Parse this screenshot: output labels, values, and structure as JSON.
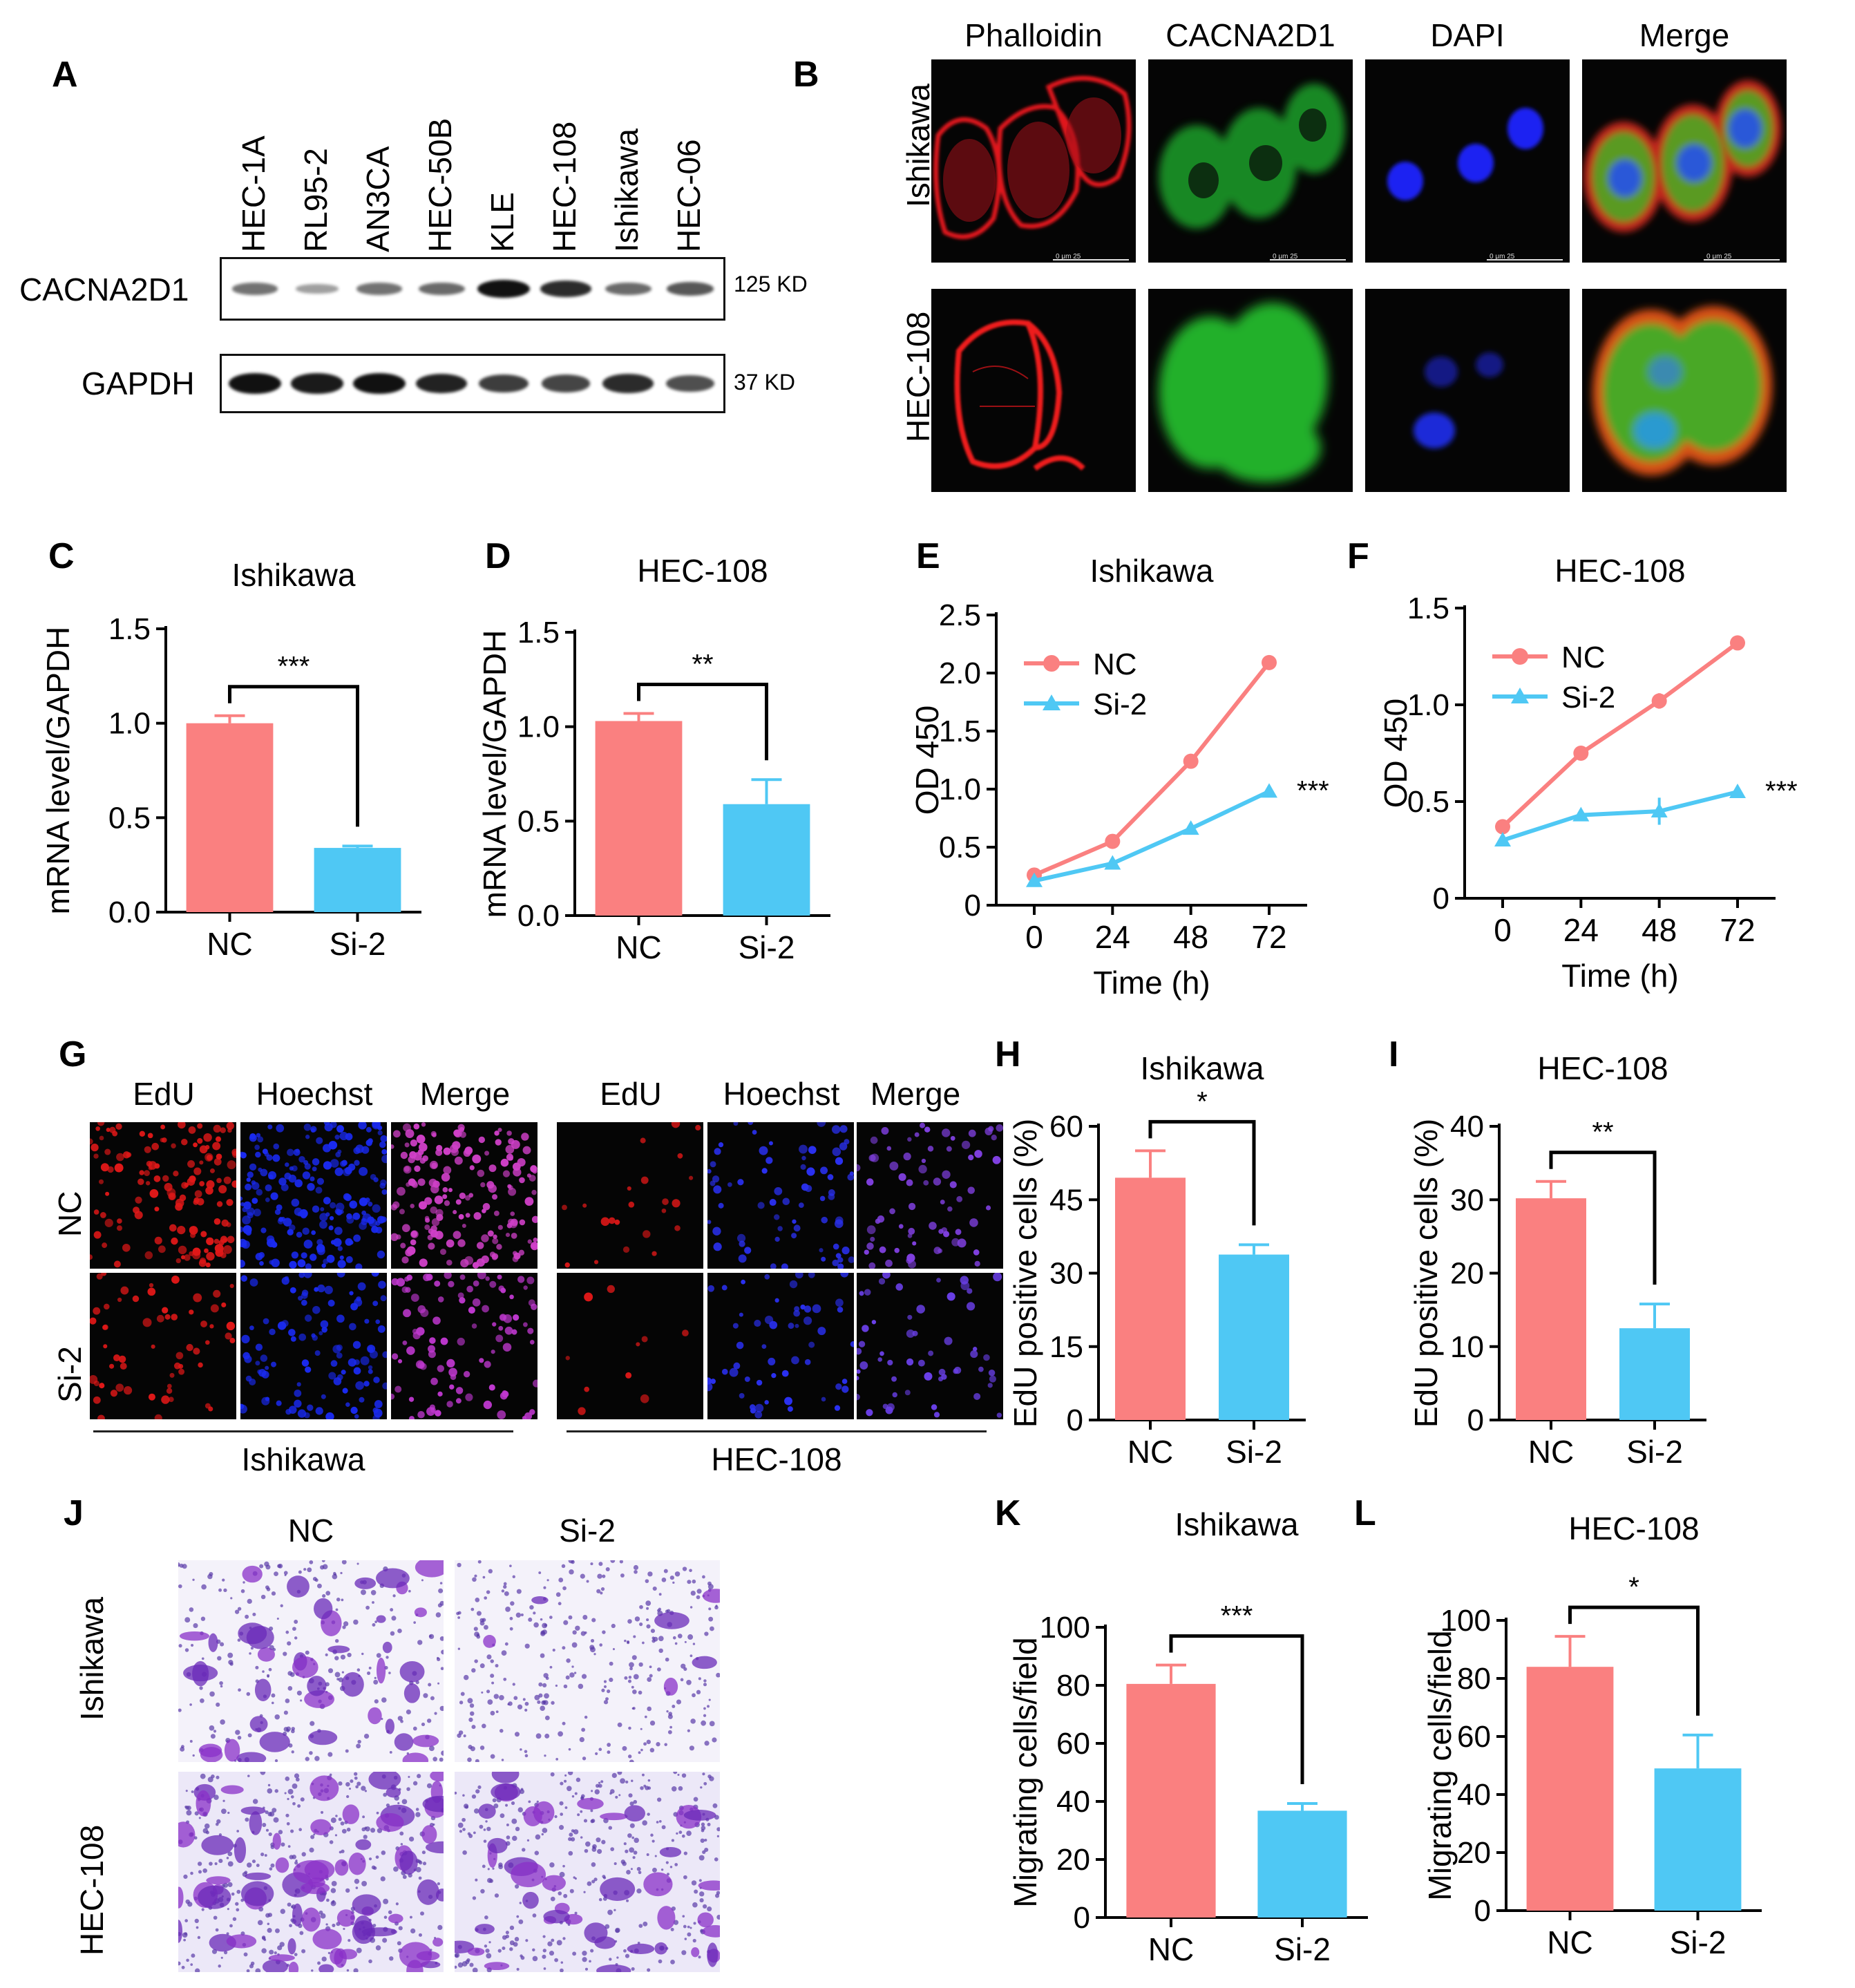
{
  "panels": {
    "A": "A",
    "B": "B",
    "C": "C",
    "D": "D",
    "E": "E",
    "F": "F",
    "G": "G",
    "H": "H",
    "I": "I",
    "J": "J",
    "K": "K",
    "L": "L"
  },
  "western_blot": {
    "lanes": [
      "HEC-1A",
      "RL95-2",
      "AN3CA",
      "HEC-50B",
      "KLE",
      "HEC-108",
      "Ishikawa",
      "HEC-06"
    ],
    "rows": [
      {
        "protein": "CACNA2D1",
        "size": "125 KD",
        "intensity": [
          0.45,
          0.2,
          0.45,
          0.5,
          1.0,
          0.85,
          0.5,
          0.6
        ]
      },
      {
        "protein": "GAPDH",
        "size": "37 KD",
        "intensity": [
          1.0,
          0.95,
          1.0,
          0.9,
          0.75,
          0.7,
          0.85,
          0.65
        ]
      }
    ]
  },
  "if_panel": {
    "columns": [
      "Phalloidin",
      "CACNA2D1",
      "DAPI",
      "Merge"
    ],
    "rows": [
      "Ishikawa",
      "HEC-108"
    ],
    "scale_text": "0   μm   25"
  },
  "edu_panel": {
    "groups": [
      {
        "columns": [
          "EdU",
          "Hoechst",
          "Merge"
        ],
        "label": "Ishikawa"
      },
      {
        "columns": [
          "EdU",
          "Hoechst",
          "Merge"
        ],
        "label": "HEC-108"
      }
    ],
    "rows": [
      "NC",
      "Si-2"
    ]
  },
  "transwell_panel": {
    "columns": [
      "NC",
      "Si-2"
    ],
    "rows": [
      "Ishikawa",
      "HEC-108"
    ]
  },
  "chart_data": [
    {
      "id": "C",
      "type": "bar",
      "title": "Ishikawa",
      "ylabel": "mRNA level/GAPDH",
      "xlabel": "",
      "categories": [
        "NC",
        "Si-2"
      ],
      "values": [
        1.0,
        0.34
      ],
      "errors": [
        0.04,
        0.01
      ],
      "ylim": [
        0,
        1.5
      ],
      "yticks": [
        "0.0",
        "0.5",
        "1.0",
        "1.5"
      ],
      "significance": "***"
    },
    {
      "id": "D",
      "type": "bar",
      "title": "HEC-108",
      "ylabel": "mRNA level/GAPDH",
      "xlabel": "",
      "categories": [
        "NC",
        "Si-2"
      ],
      "values": [
        1.03,
        0.59
      ],
      "errors": [
        0.04,
        0.13
      ],
      "ylim": [
        0,
        1.5
      ],
      "yticks": [
        "0.0",
        "0.5",
        "1.0",
        "1.5"
      ],
      "significance": "**"
    },
    {
      "id": "E",
      "type": "line",
      "title": "Ishikawa",
      "ylabel": "OD 450",
      "xlabel": "Time (h)",
      "x": [
        0,
        24,
        48,
        72
      ],
      "xticks": [
        "0",
        "24",
        "48",
        "72"
      ],
      "series": [
        {
          "name": "NC",
          "values": [
            0.26,
            0.55,
            1.24,
            2.09
          ],
          "errors": [
            0.02,
            0.02,
            0.02,
            0.02
          ]
        },
        {
          "name": "Si-2",
          "values": [
            0.21,
            0.36,
            0.66,
            0.98
          ],
          "errors": [
            0.02,
            0.02,
            0.03,
            0.04
          ]
        }
      ],
      "ylim": [
        0,
        2.5
      ],
      "yticks": [
        "0",
        "0.5",
        "1.0",
        "1.5",
        "2.0",
        "2.5"
      ],
      "significance": "***"
    },
    {
      "id": "F",
      "type": "line",
      "title": "HEC-108",
      "ylabel": "OD 450",
      "xlabel": "Time (h)",
      "x": [
        0,
        24,
        48,
        72
      ],
      "xticks": [
        "0",
        "24",
        "48",
        "72"
      ],
      "series": [
        {
          "name": "NC",
          "values": [
            0.37,
            0.75,
            1.02,
            1.32
          ],
          "errors": [
            0.02,
            0.03,
            0.04,
            0.02
          ]
        },
        {
          "name": "Si-2",
          "values": [
            0.3,
            0.43,
            0.45,
            0.55
          ],
          "errors": [
            0.03,
            0.03,
            0.07,
            0.03
          ]
        }
      ],
      "ylim": [
        0,
        1.5
      ],
      "yticks": [
        "0",
        "0.5",
        "1.0",
        "1.5"
      ],
      "significance": "***"
    },
    {
      "id": "H",
      "type": "bar",
      "title": "Ishikawa",
      "ylabel": "EdU positive cells (%)",
      "xlabel": "",
      "categories": [
        "NC",
        "Si-2"
      ],
      "values": [
        49.5,
        33.8
      ],
      "errors": [
        5.5,
        2.0
      ],
      "ylim": [
        0,
        60
      ],
      "yticks": [
        "0",
        "15",
        "30",
        "45",
        "60"
      ],
      "significance": "*"
    },
    {
      "id": "I",
      "type": "bar",
      "title": "HEC-108",
      "ylabel": "EdU positive cells (%)",
      "xlabel": "",
      "categories": [
        "NC",
        "Si-2"
      ],
      "values": [
        30.2,
        12.5
      ],
      "errors": [
        2.3,
        3.3
      ],
      "ylim": [
        0,
        40
      ],
      "yticks": [
        "0",
        "10",
        "20",
        "30",
        "40"
      ],
      "significance": "**"
    },
    {
      "id": "K",
      "type": "bar",
      "title": "Ishikawa",
      "ylabel": "Migrating cells/field",
      "xlabel": "",
      "categories": [
        "NC",
        "Si-2"
      ],
      "values": [
        80.5,
        36.8
      ],
      "errors": [
        6.5,
        2.5
      ],
      "ylim": [
        0,
        100
      ],
      "yticks": [
        "0",
        "20",
        "40",
        "60",
        "80",
        "100"
      ],
      "significance": "***"
    },
    {
      "id": "L",
      "type": "bar",
      "title": "HEC-108",
      "ylabel": "Migrating cells/field",
      "xlabel": "",
      "categories": [
        "NC",
        "Si-2"
      ],
      "values": [
        84.0,
        49.0
      ],
      "errors": [
        10.5,
        11.5
      ],
      "ylim": [
        0,
        100
      ],
      "yticks": [
        "0",
        "20",
        "40",
        "60",
        "80",
        "100"
      ],
      "significance": "*"
    }
  ],
  "colors": {
    "nc": "#fa8080",
    "si2": "#4fc8f4"
  }
}
